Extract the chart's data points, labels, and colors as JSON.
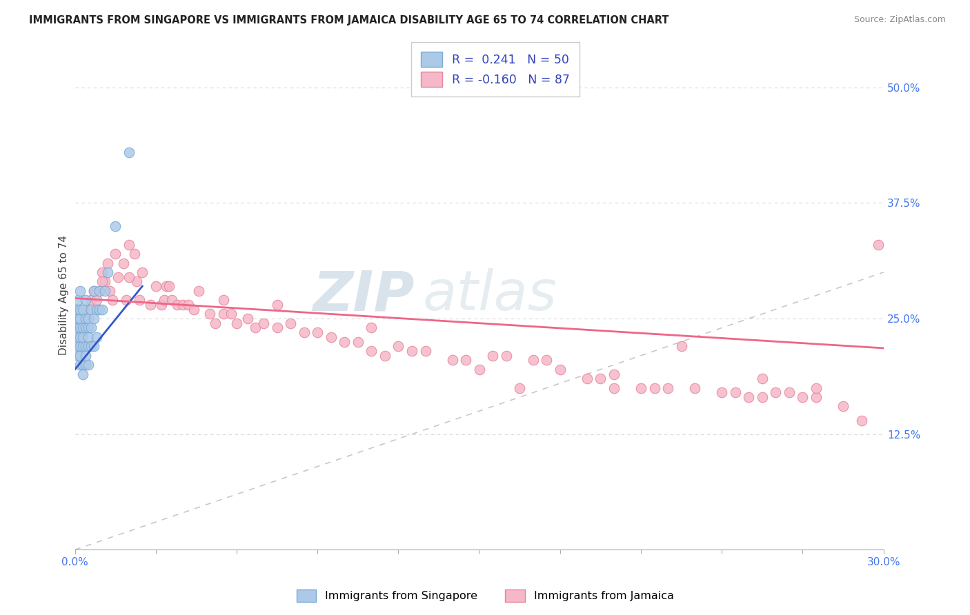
{
  "title": "IMMIGRANTS FROM SINGAPORE VS IMMIGRANTS FROM JAMAICA DISABILITY AGE 65 TO 74 CORRELATION CHART",
  "source": "Source: ZipAtlas.com",
  "ylabel": "Disability Age 65 to 74",
  "ytick_labels": [
    "12.5%",
    "25.0%",
    "37.5%",
    "50.0%"
  ],
  "ytick_values": [
    0.125,
    0.25,
    0.375,
    0.5
  ],
  "xlim": [
    0.0,
    0.3
  ],
  "ylim": [
    0.0,
    0.55
  ],
  "singapore_R": 0.241,
  "singapore_N": 50,
  "jamaica_R": -0.16,
  "jamaica_N": 87,
  "singapore_color": "#adc9e8",
  "singapore_edge": "#7aaad4",
  "jamaica_color": "#f5b8c8",
  "jamaica_edge": "#e8849a",
  "singapore_line_color": "#3355cc",
  "jamaica_line_color": "#ee6688",
  "diagonal_color": "#c8c8c8",
  "watermark_zip": "ZIP",
  "watermark_atlas": "atlas",
  "legend_R1": "R =  0.241",
  "legend_N1": "N = 50",
  "legend_R2": "R = -0.160",
  "legend_N2": "N = 87",
  "legend_label1": "Immigrants from Singapore",
  "legend_label2": "Immigrants from Jamaica",
  "sg_line_x0": 0.0,
  "sg_line_y0": 0.195,
  "sg_line_x1": 0.025,
  "sg_line_y1": 0.285,
  "jm_line_x0": 0.0,
  "jm_line_y0": 0.272,
  "jm_line_x1": 0.3,
  "jm_line_y1": 0.218,
  "sg_scatter_x": [
    0.001,
    0.001,
    0.001,
    0.001,
    0.001,
    0.001,
    0.001,
    0.001,
    0.001,
    0.001,
    0.002,
    0.002,
    0.002,
    0.002,
    0.002,
    0.002,
    0.002,
    0.002,
    0.003,
    0.003,
    0.003,
    0.003,
    0.003,
    0.003,
    0.004,
    0.004,
    0.004,
    0.004,
    0.004,
    0.004,
    0.005,
    0.005,
    0.005,
    0.005,
    0.005,
    0.006,
    0.006,
    0.006,
    0.007,
    0.007,
    0.007,
    0.008,
    0.008,
    0.009,
    0.009,
    0.01,
    0.011,
    0.012,
    0.015,
    0.02
  ],
  "sg_scatter_y": [
    0.21,
    0.22,
    0.23,
    0.24,
    0.24,
    0.25,
    0.25,
    0.26,
    0.26,
    0.27,
    0.2,
    0.21,
    0.22,
    0.23,
    0.24,
    0.25,
    0.26,
    0.28,
    0.19,
    0.2,
    0.22,
    0.23,
    0.24,
    0.26,
    0.2,
    0.21,
    0.22,
    0.24,
    0.25,
    0.27,
    0.2,
    0.22,
    0.23,
    0.24,
    0.25,
    0.22,
    0.24,
    0.26,
    0.22,
    0.25,
    0.28,
    0.23,
    0.26,
    0.26,
    0.28,
    0.26,
    0.28,
    0.3,
    0.35,
    0.43
  ],
  "jm_scatter_x": [
    0.005,
    0.006,
    0.007,
    0.008,
    0.009,
    0.01,
    0.011,
    0.012,
    0.013,
    0.014,
    0.015,
    0.016,
    0.018,
    0.019,
    0.02,
    0.022,
    0.023,
    0.024,
    0.025,
    0.028,
    0.03,
    0.032,
    0.033,
    0.034,
    0.036,
    0.038,
    0.04,
    0.042,
    0.044,
    0.046,
    0.05,
    0.052,
    0.055,
    0.058,
    0.06,
    0.064,
    0.067,
    0.07,
    0.075,
    0.08,
    0.085,
    0.09,
    0.095,
    0.1,
    0.105,
    0.11,
    0.115,
    0.12,
    0.125,
    0.13,
    0.14,
    0.15,
    0.155,
    0.16,
    0.17,
    0.175,
    0.18,
    0.19,
    0.195,
    0.2,
    0.21,
    0.215,
    0.22,
    0.23,
    0.24,
    0.245,
    0.25,
    0.255,
    0.26,
    0.265,
    0.27,
    0.275,
    0.01,
    0.02,
    0.035,
    0.055,
    0.075,
    0.11,
    0.145,
    0.165,
    0.2,
    0.225,
    0.255,
    0.275,
    0.285,
    0.292,
    0.298
  ],
  "jm_scatter_y": [
    0.26,
    0.27,
    0.28,
    0.27,
    0.28,
    0.3,
    0.29,
    0.31,
    0.28,
    0.27,
    0.32,
    0.295,
    0.31,
    0.27,
    0.33,
    0.32,
    0.29,
    0.27,
    0.3,
    0.265,
    0.285,
    0.265,
    0.27,
    0.285,
    0.27,
    0.265,
    0.265,
    0.265,
    0.26,
    0.28,
    0.255,
    0.245,
    0.255,
    0.255,
    0.245,
    0.25,
    0.24,
    0.245,
    0.24,
    0.245,
    0.235,
    0.235,
    0.23,
    0.225,
    0.225,
    0.215,
    0.21,
    0.22,
    0.215,
    0.215,
    0.205,
    0.195,
    0.21,
    0.21,
    0.205,
    0.205,
    0.195,
    0.185,
    0.185,
    0.19,
    0.175,
    0.175,
    0.175,
    0.175,
    0.17,
    0.17,
    0.165,
    0.165,
    0.17,
    0.17,
    0.165,
    0.165,
    0.29,
    0.295,
    0.285,
    0.27,
    0.265,
    0.24,
    0.205,
    0.175,
    0.175,
    0.22,
    0.185,
    0.175,
    0.155,
    0.14,
    0.33
  ]
}
